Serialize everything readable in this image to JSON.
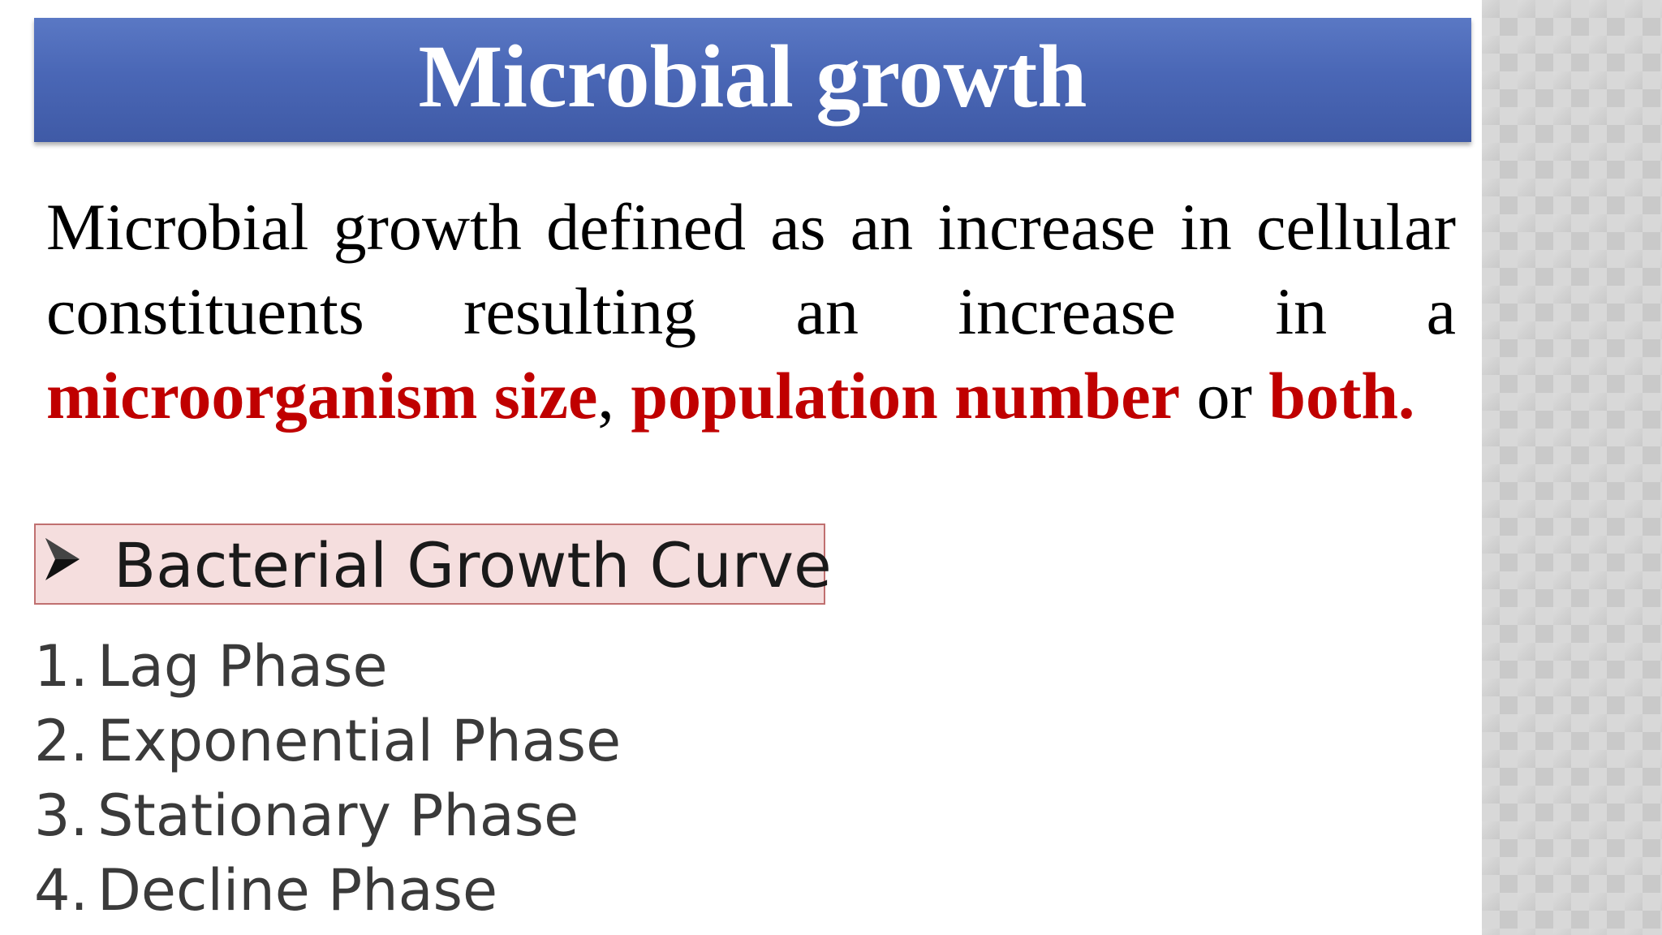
{
  "slide": {
    "title": "Microbial growth",
    "definition": {
      "part1": "Microbial growth defined as an increase in cellular constituents resulting an increase in a ",
      "highlight1": "microorganism size",
      "part2": ", ",
      "highlight2": "population number",
      "part3": " or ",
      "highlight3": "both."
    },
    "section_heading": "Bacterial Growth Curve",
    "bullet_icon": "arrowhead-bullet-icon",
    "phases": [
      {
        "num": "1.",
        "label": "Lag Phase"
      },
      {
        "num": "2.",
        "label": "Exponential Phase"
      },
      {
        "num": "3.",
        "label": "Stationary Phase"
      },
      {
        "num": "4.",
        "label": "Decline Phase"
      }
    ]
  },
  "colors": {
    "title_bar": "#4a67b6",
    "highlight": "#c00000",
    "heading_box": "#f5dede",
    "heading_border": "#c07070"
  }
}
